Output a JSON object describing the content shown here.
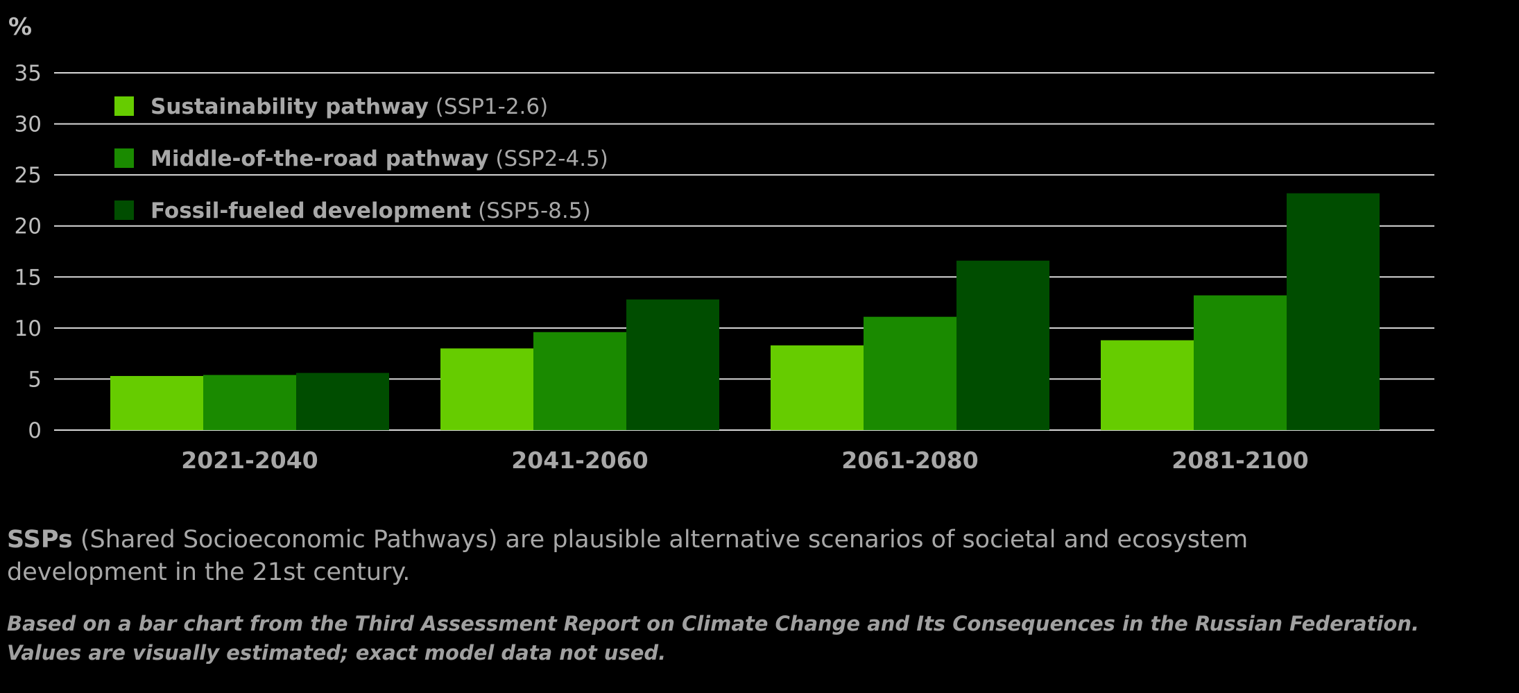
{
  "chart_data": {
    "type": "bar",
    "ylabel": "%",
    "ylim": [
      0,
      35
    ],
    "yticks": [
      0,
      5,
      10,
      15,
      20,
      25,
      30,
      35
    ],
    "grid": true,
    "legend_position": "top-left",
    "categories": [
      "2021-2040",
      "2041-2060",
      "2061-2080",
      "2081-2100"
    ],
    "series": [
      {
        "name": "Sustainability pathway",
        "code": "(SSP1-2.6)",
        "color": "#66cc00",
        "values": [
          5.3,
          8.0,
          8.3,
          8.8
        ]
      },
      {
        "name": "Middle-of-the-road pathway",
        "code": "(SSP2-4.5)",
        "color": "#1a8a00",
        "values": [
          5.4,
          9.6,
          11.1,
          13.2
        ]
      },
      {
        "name": "Fossil-fueled development",
        "code": "(SSP5-8.5)",
        "color": "#004d00",
        "values": [
          5.6,
          12.8,
          16.6,
          23.2
        ]
      }
    ],
    "grid_color": "#d9d9d9"
  },
  "notes": {
    "ssp_term": "SSPs",
    "ssp_text": " (Shared Socioeconomic Pathways) are plausible alternative scenarios of societal and ecosystem development in the 21st century.",
    "source": "Based on a bar chart from the Third Assessment Report on Climate Change and Its Consequences in the Russian Federation. Values are visually estimated; exact model data not used."
  }
}
